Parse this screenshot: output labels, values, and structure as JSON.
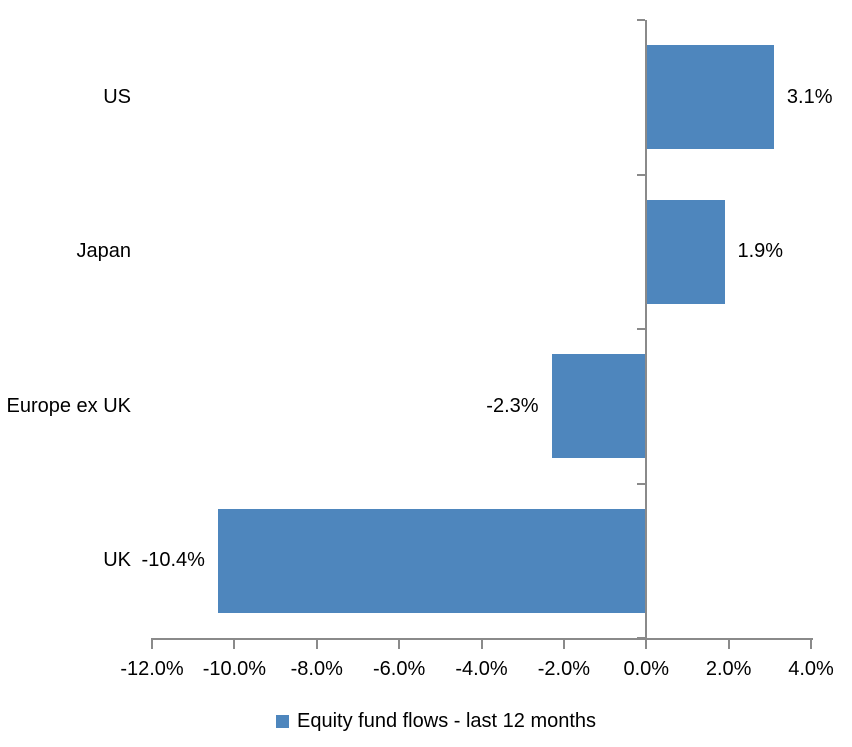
{
  "chart_data": {
    "type": "bar",
    "orientation": "horizontal",
    "title": "",
    "categories": [
      "US",
      "Japan",
      "Europe ex UK",
      "UK"
    ],
    "values": [
      3.1,
      1.9,
      -2.3,
      -10.4
    ],
    "value_labels": [
      "3.1%",
      "1.9%",
      "-2.3%",
      "-10.4%"
    ],
    "x_ticks": [
      -12,
      -10,
      -8,
      -6,
      -4,
      -2,
      0,
      2,
      4
    ],
    "x_tick_labels": [
      "-12.0%",
      "-10.0%",
      "-8.0%",
      "-6.0%",
      "-4.0%",
      "-2.0%",
      "0.0%",
      "2.0%",
      "4.0%"
    ],
    "xlim": [
      -12,
      4
    ],
    "grid": false,
    "legend": "Equity fund flows - last 12 months",
    "legend_position": "bottom",
    "bar_color": "#4E86BD",
    "axis_color": "#8A8A8A",
    "text_color": "#000000"
  }
}
